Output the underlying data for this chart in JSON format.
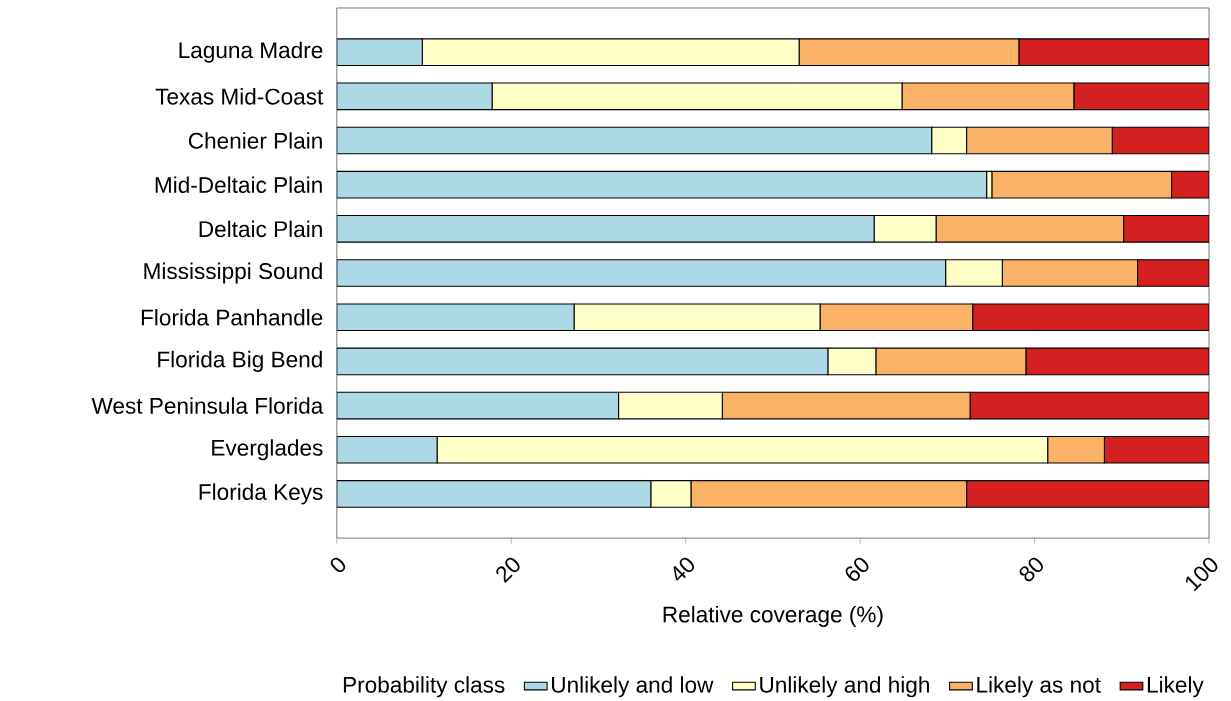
{
  "chart_data": {
    "type": "bar",
    "orientation": "horizontal",
    "stacked": true,
    "categories": [
      "Laguna Madre",
      "Texas Mid-Coast",
      "Chenier Plain",
      "Mid-Deltaic Plain",
      "Deltaic Plain",
      "Mississippi Sound",
      "Florida Panhandle",
      "Florida Big Bend",
      "West Peninsula Florida",
      "Everglades",
      "Florida Keys"
    ],
    "series": [
      {
        "name": "Unlikely and low",
        "color": "#add8e6",
        "values": [
          9.8,
          17.8,
          68.2,
          74.5,
          61.6,
          69.8,
          27.2,
          56.3,
          32.3,
          11.5,
          36.0
        ]
      },
      {
        "name": "Unlikely and high",
        "color": "#ffffc8",
        "values": [
          43.2,
          47.0,
          4.0,
          0.6,
          7.1,
          6.5,
          28.2,
          5.5,
          11.9,
          70.0,
          4.6
        ]
      },
      {
        "name": "Likely as not",
        "color": "#f9b266",
        "values": [
          25.2,
          19.7,
          16.7,
          20.6,
          21.5,
          15.5,
          17.5,
          17.2,
          28.4,
          6.5,
          31.6
        ]
      },
      {
        "name": "Likely",
        "color": "#d42020",
        "values": [
          21.8,
          15.5,
          11.1,
          4.3,
          9.8,
          8.2,
          27.1,
          21.0,
          27.4,
          12.0,
          27.8
        ]
      }
    ],
    "xlabel": "Relative coverage (%)",
    "legend_title": "Probability class",
    "xlim": [
      0,
      100
    ],
    "xticks": [
      0,
      20,
      40,
      60,
      80,
      100
    ],
    "legend": "bottom",
    "grid": false
  }
}
